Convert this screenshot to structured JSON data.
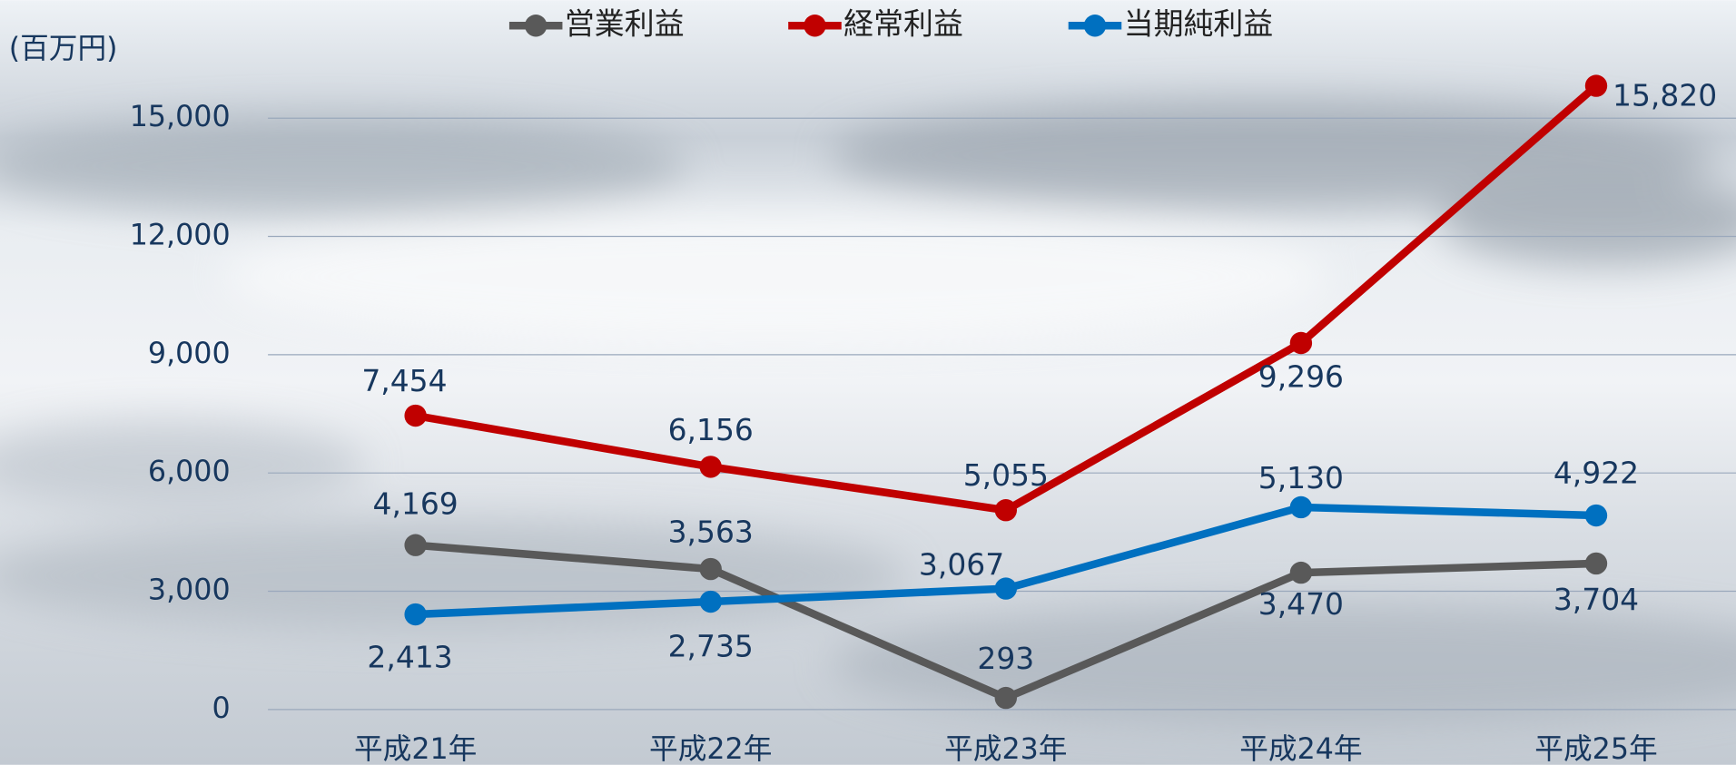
{
  "chart_data": {
    "type": "line",
    "y_axis_label": "(百万円)",
    "categories": [
      "平成21年",
      "平成22年",
      "平成23年",
      "平成24年",
      "平成25年"
    ],
    "series": [
      {
        "name": "営業利益",
        "color": "#595959",
        "values": [
          4169,
          3563,
          293,
          3470,
          3704
        ],
        "value_labels": [
          "4,169",
          "3,563",
          "293",
          "3,470",
          "3,704"
        ]
      },
      {
        "name": "経常利益",
        "color": "#c00000",
        "values": [
          7454,
          6156,
          5055,
          9296,
          15820
        ],
        "value_labels": [
          "7,454",
          "6,156",
          "5,055",
          "9,296",
          "15,820"
        ]
      },
      {
        "name": "当期純利益",
        "color": "#0070c0",
        "values": [
          2413,
          2735,
          3067,
          5130,
          4922
        ],
        "value_labels": [
          "2,413",
          "2,735",
          "3,067",
          "5,130",
          "4,922"
        ]
      }
    ],
    "ylim": [
      0,
      16000
    ],
    "yticks": [
      0,
      {
        "value": 3000,
        "label": "3,000"
      },
      {
        "value": 6000,
        "label": "6,000"
      },
      {
        "value": 9000,
        "label": "9,000"
      },
      {
        "value": 12000,
        "label": "12,000"
      },
      {
        "value": 15000,
        "label": "15,000"
      }
    ],
    "grid": true
  }
}
